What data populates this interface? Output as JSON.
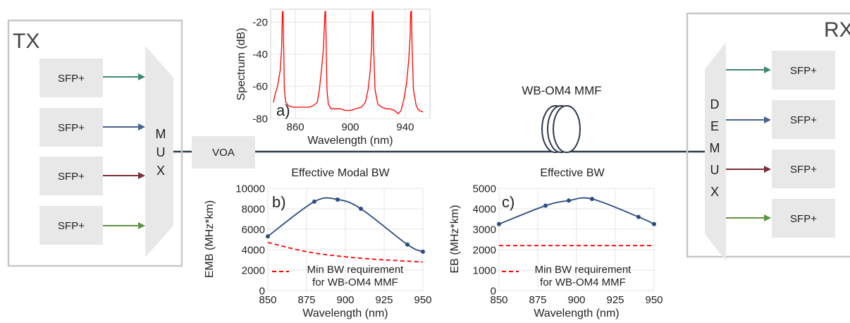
{
  "colors": {
    "line": "#2e3a4a",
    "box": "#e8e8e8",
    "frame": "#c8c8c8",
    "spectrum": "#ff0000",
    "curve": "#2b4d82",
    "requirement": "#ff0000",
    "arrows": [
      "#3f8a6e",
      "#4a6390",
      "#7a3038",
      "#5e9440"
    ]
  },
  "tx": {
    "label": "TX",
    "transceivers": [
      "SFP+",
      "SFP+",
      "SFP+",
      "SFP+"
    ],
    "mux_letters": [
      "M",
      "U",
      "X"
    ]
  },
  "voa": {
    "label": "VOA"
  },
  "fiber": {
    "label": "WB-OM4 MMF",
    "icon": "fiber-coil-icon"
  },
  "rx": {
    "label": "RX",
    "transceivers": [
      "SFP+",
      "SFP+",
      "SFP+",
      "SFP+"
    ],
    "demux_letters": [
      "D",
      "E",
      "M",
      "U",
      "X"
    ]
  },
  "charts": {
    "spectrum": {
      "type": "line",
      "tag": "a)",
      "xlabel": "Wavelength (nm)",
      "ylabel": "Spectrum (dB)",
      "xlim": [
        842,
        958
      ],
      "ylim": [
        -80,
        -12
      ],
      "xticks": [
        860,
        900,
        940
      ],
      "yticks": [
        -20,
        -40,
        -60,
        -80
      ],
      "grid": true,
      "series": [
        {
          "x": [
            844,
            845,
            847,
            849,
            850,
            850.5,
            851,
            851.5,
            852,
            853,
            855,
            858,
            862,
            866,
            870,
            873,
            876,
            877.5,
            879,
            880.5,
            881.5,
            882,
            882.5,
            883,
            884,
            886,
            889,
            893,
            896,
            898,
            900,
            904,
            908,
            911,
            913,
            914.5,
            915.5,
            916,
            916.5,
            917,
            918,
            920,
            923,
            926,
            929,
            932,
            935,
            937,
            939,
            941,
            942.5,
            943.5,
            944,
            944.5,
            945,
            946,
            948,
            950,
            953
          ],
          "y": [
            -70,
            -66,
            -60,
            -50,
            -36,
            -14,
            -13,
            -36,
            -62,
            -70,
            -72,
            -73,
            -73,
            -73,
            -73,
            -72,
            -70,
            -62,
            -50,
            -36,
            -14,
            -13,
            -36,
            -62,
            -71,
            -74,
            -74,
            -74,
            -75,
            -75,
            -75,
            -74,
            -73,
            -70,
            -62,
            -50,
            -36,
            -14,
            -13,
            -36,
            -62,
            -71,
            -73,
            -74,
            -74,
            -75,
            -77,
            -75,
            -68,
            -58,
            -44,
            -30,
            -14,
            -13,
            -36,
            -62,
            -72,
            -75,
            -76
          ]
        }
      ]
    },
    "emb": {
      "type": "line",
      "title": "Effective Modal BW",
      "tag": "b)",
      "xlabel": "Wavelength (nm)",
      "ylabel": "EMB (MHz*km)",
      "xlim": [
        850,
        950
      ],
      "ylim": [
        0,
        10000
      ],
      "xticks": [
        850,
        875,
        900,
        925,
        950
      ],
      "yticks": [
        0,
        2000,
        4000,
        6000,
        8000,
        10000
      ],
      "grid": true,
      "series": [
        {
          "name": "",
          "x": [
            850,
            880,
            895,
            910,
            940,
            950
          ],
          "y": [
            5300,
            8700,
            8900,
            8000,
            4500,
            3800
          ]
        },
        {
          "name": "Min BW requirement for WB-OM4 MMF",
          "x": [
            850,
            875,
            900,
            925,
            950
          ],
          "y": [
            4700,
            3800,
            3300,
            3000,
            2800
          ]
        }
      ],
      "legend": {
        "line1": "Min BW requirement",
        "line2": "for WB-OM4 MMF",
        "placement": "bottom-right"
      }
    },
    "eb": {
      "type": "line",
      "title": "Effective BW",
      "tag": "c)",
      "xlabel": "Wavelength (nm)",
      "ylabel": "EB (MHz*km)",
      "xlim": [
        850,
        950
      ],
      "ylim": [
        0,
        5000
      ],
      "xticks": [
        850,
        875,
        900,
        925,
        950
      ],
      "yticks": [
        0,
        1000,
        2000,
        3000,
        4000,
        5000
      ],
      "grid": true,
      "series": [
        {
          "name": "",
          "x": [
            850,
            880,
            895,
            910,
            940,
            950
          ],
          "y": [
            3250,
            4150,
            4400,
            4480,
            3600,
            3250
          ]
        },
        {
          "name": "Min BW requirement for WB-OM4 MMF",
          "x": [
            850,
            950
          ],
          "y": [
            2200,
            2200
          ]
        }
      ],
      "legend": {
        "line1": "Min BW requirement",
        "line2": "for WB-OM4 MMF",
        "placement": "bottom-right"
      }
    }
  }
}
